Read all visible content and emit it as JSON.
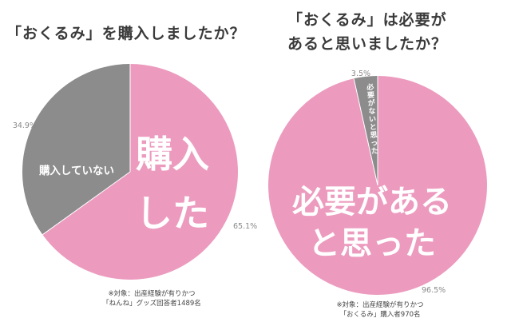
{
  "colors": {
    "pink": "#ec9bbf",
    "gray": "#8c8c8c",
    "inside_text": "#ffffff",
    "outside_label": "#8a8a8a",
    "connector": "#c8c8c8"
  },
  "chart_data": [
    {
      "type": "pie",
      "title": "「おくるみ」を購入しましたか？",
      "slices": [
        {
          "label": "購入した",
          "value": 65.1,
          "pct_label": "65.1%",
          "color": "#ec9bbf"
        },
        {
          "label": "購入していない",
          "value": 34.9,
          "pct_label": "34.9%",
          "color": "#8c8c8c"
        }
      ],
      "inside_labels": [
        {
          "line1": "購入",
          "line2": "した"
        },
        {
          "line1": "購入していない",
          "line2": ""
        }
      ],
      "note_lines": [
        "※対象：出産経験が有りかつ",
        "「ねんね」グッズ回答者1489名"
      ]
    },
    {
      "type": "pie",
      "title_lines": [
        "「おくるみ」は必要が",
        "あると思いましたか？"
      ],
      "slices": [
        {
          "label": "必要があると思った",
          "value": 96.5,
          "pct_label": "96.5%",
          "color": "#ec9bbf"
        },
        {
          "label": "必要がないと思った",
          "value": 3.5,
          "pct_label": "3.5%",
          "color": "#8c8c8c"
        }
      ],
      "inside_labels": [
        {
          "line1": "必要がある",
          "line2": "と思った"
        },
        {
          "line1": "必要がないと思った",
          "line2": ""
        }
      ],
      "note_lines": [
        "※対象：出産経験が有りかつ",
        "「おくるみ」購入者970名"
      ]
    }
  ]
}
